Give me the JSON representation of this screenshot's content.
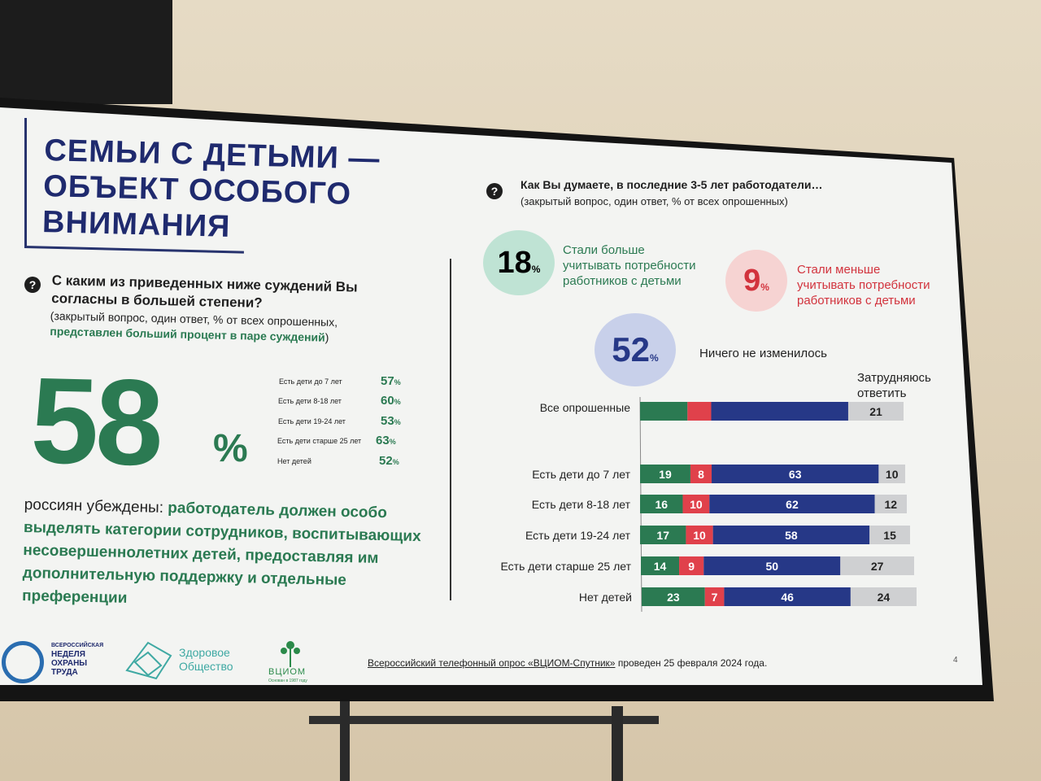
{
  "slide": {
    "title_lines": [
      "СЕМЬИ С ДЕТЬМИ —",
      "ОБЪЕКТ ОСОБОГО",
      "ВНИМАНИЯ"
    ],
    "page_number": "4",
    "source_text": "Всероссийский телефонный опрос «ВЦИОМ-Спутник»",
    "source_tail": " проведен 25 февраля 2024 года."
  },
  "left": {
    "question_icon": "?",
    "question": "С каким из приведенных ниже суждений Вы согласны в большей степени?",
    "note_plain": "(закрытый вопрос, один ответ, % от всех опрошенных,",
    "note_highlight": "представлен больший процент в паре суждений",
    "note_close": ")",
    "big_value": "58",
    "big_unit": "%",
    "groups": [
      {
        "label": "Есть дети до 7 лет",
        "value": "57",
        "unit": "%"
      },
      {
        "label": "Есть дети 8-18 лет",
        "value": "60",
        "unit": "%"
      },
      {
        "label": "Есть дети 19-24 лет",
        "value": "53",
        "unit": "%"
      },
      {
        "label": "Есть дети старше 25 лет",
        "value": "63",
        "unit": "%"
      },
      {
        "label": "Нет детей",
        "value": "52",
        "unit": "%"
      }
    ],
    "statement_plain": "россиян убеждены: ",
    "statement_highlight": "работодатель должен особо выделять категории сотрудников, воспитывающих несовершеннолетних детей, предоставляя им дополнительную поддержку и отдельные преференции"
  },
  "right": {
    "question_icon": "?",
    "question": "Как Вы думаете, в последние 3-5 лет работодатели…",
    "note": "(закрытый вопрос, один ответ, % от всех опрошенных)",
    "circles": [
      {
        "value": "18",
        "unit": "%",
        "label_lines": [
          "Стали больше",
          "учитывать потребности",
          "работников с детьми"
        ],
        "color": "#2b7a52"
      },
      {
        "value": "9",
        "unit": "%",
        "label_lines": [
          "Стали меньше",
          "учитывать потребности",
          "работников с детьми"
        ],
        "color": "#e0414b"
      },
      {
        "value": "52",
        "unit": "%",
        "label_lines": [
          "Ничего не изменилось"
        ],
        "color": "#263887"
      }
    ],
    "dk_label_lines": [
      "Затрудняюсь",
      "ответить"
    ]
  },
  "chart_data": {
    "type": "bar",
    "orientation": "horizontal-stacked",
    "categories": [
      "Все опрошенные",
      "Есть дети до 7 лет",
      "Есть дети 8-18 лет",
      "Есть дети 19-24 лет",
      "Есть дети старше 25 лет",
      "Нет детей"
    ],
    "series": [
      {
        "name": "Стали больше учитывать потребности работников с детьми",
        "color": "#2b7a52",
        "values": [
          18,
          19,
          16,
          17,
          14,
          23
        ]
      },
      {
        "name": "Стали меньше учитывать потребности работников с детьми",
        "color": "#e0414b",
        "values": [
          9,
          8,
          10,
          10,
          9,
          7
        ]
      },
      {
        "name": "Ничего не изменилось",
        "color": "#263887",
        "values": [
          52,
          63,
          62,
          58,
          50,
          46
        ]
      },
      {
        "name": "Затрудняюсь ответить",
        "color": "#cfd0d2",
        "values": [
          21,
          10,
          12,
          15,
          27,
          24
        ]
      }
    ],
    "labeled": [
      [
        false,
        false,
        false,
        true
      ],
      [
        true,
        true,
        true,
        true
      ],
      [
        true,
        true,
        true,
        true
      ],
      [
        true,
        true,
        true,
        true
      ],
      [
        true,
        true,
        true,
        true
      ],
      [
        true,
        true,
        true,
        true
      ]
    ]
  },
  "logos": {
    "week_lines": [
      "ВСЕРОССИЙСКАЯ",
      "НЕДЕЛЯ",
      "ОХРАНЫ",
      "ТРУДА"
    ],
    "healthy_lines": [
      "Здоровое",
      "Общество"
    ],
    "vciom_name": "ВЦИОМ",
    "vciom_tagline": "Основан в 1987 году"
  }
}
